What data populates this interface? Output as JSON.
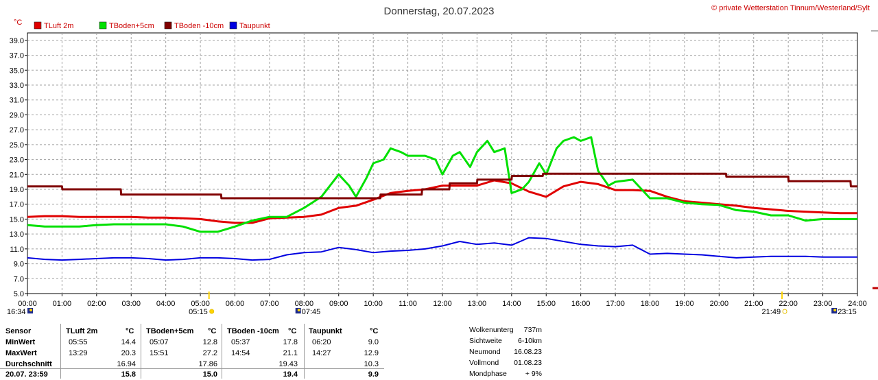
{
  "header": {
    "title": "Donnerstag, 20.07.2023",
    "copyright": "© private Wetterstation Tinnum/Westerland/Sylt",
    "unit": "°C"
  },
  "chart_data": {
    "type": "line",
    "title": "Donnerstag, 20.07.2023",
    "ylabel": "°C",
    "ylim": [
      5.0,
      40.0
    ],
    "xlim": [
      0,
      24
    ],
    "grid": true,
    "legend_position": "top-left",
    "y_ticks": [
      "5.0",
      "7.0",
      "9.0",
      "11.0",
      "13.0",
      "15.0",
      "17.0",
      "19.0",
      "21.0",
      "23.0",
      "25.0",
      "27.0",
      "29.0",
      "31.0",
      "33.0",
      "35.0",
      "37.0",
      "39.0"
    ],
    "x_ticks": [
      "00:00",
      "01:00",
      "02:00",
      "03:00",
      "04:00",
      "05:00",
      "06:00",
      "07:00",
      "08:00",
      "09:00",
      "10:00",
      "11:00",
      "12:00",
      "13:00",
      "14:00",
      "15:00",
      "16:00",
      "17:00",
      "18:00",
      "19:00",
      "20:00",
      "21:00",
      "22:00",
      "23:00",
      "24:00"
    ],
    "sun_moon_times": [
      {
        "time": "16:34",
        "hour": 0.0,
        "kind": "moonset"
      },
      {
        "time": "05:15",
        "hour": 5.25,
        "kind": "sunrise"
      },
      {
        "time": "07:45",
        "hour": 7.75,
        "kind": "moonrise"
      },
      {
        "time": "21:49",
        "hour": 21.82,
        "kind": "sunset"
      },
      {
        "time": "23:15",
        "hour": 23.25,
        "kind": "moonset"
      }
    ],
    "series": [
      {
        "name": "TLuft 2m",
        "color": "#e00000",
        "x": [
          0,
          0.5,
          1,
          1.5,
          2,
          2.5,
          3,
          3.5,
          4,
          4.5,
          5,
          5.5,
          6,
          6.5,
          7,
          7.5,
          8,
          8.5,
          9,
          9.5,
          10,
          10.5,
          11,
          11.5,
          12,
          12.5,
          13,
          13.5,
          14,
          14.5,
          15,
          15.5,
          16,
          16.5,
          17,
          17.5,
          18,
          18.5,
          19,
          19.5,
          20,
          20.5,
          21,
          21.5,
          22,
          22.5,
          23,
          23.5,
          24
        ],
        "y": [
          15.3,
          15.4,
          15.4,
          15.3,
          15.3,
          15.3,
          15.3,
          15.2,
          15.2,
          15.1,
          15.0,
          14.7,
          14.5,
          14.5,
          15.1,
          15.2,
          15.3,
          15.6,
          16.5,
          16.8,
          17.6,
          18.5,
          18.8,
          19.0,
          19.5,
          19.5,
          19.5,
          20.2,
          19.8,
          18.7,
          18.0,
          19.4,
          20.0,
          19.7,
          18.9,
          18.9,
          18.8,
          18.0,
          17.4,
          17.2,
          17.0,
          16.8,
          16.5,
          16.3,
          16.1,
          16.0,
          15.9,
          15.8,
          15.8
        ]
      },
      {
        "name": "TBoden+5cm",
        "color": "#00e000",
        "x": [
          0,
          0.5,
          1,
          1.5,
          2,
          2.5,
          3,
          3.5,
          4,
          4.5,
          5,
          5.5,
          6,
          6.5,
          7,
          7.5,
          8,
          8.5,
          8.8,
          9,
          9.3,
          9.5,
          9.8,
          10,
          10.3,
          10.5,
          10.8,
          11,
          11.5,
          11.8,
          12,
          12.3,
          12.5,
          12.8,
          13,
          13.3,
          13.5,
          13.8,
          14,
          14.3,
          14.5,
          14.8,
          15,
          15.3,
          15.5,
          15.8,
          16,
          16.3,
          16.5,
          16.8,
          17,
          17.5,
          18,
          18.5,
          19,
          19.5,
          20,
          20.5,
          21,
          21.5,
          22,
          22.5,
          23,
          23.5,
          24
        ],
        "y": [
          14.2,
          14.0,
          14.0,
          14.0,
          14.2,
          14.3,
          14.3,
          14.3,
          14.3,
          14.0,
          13.3,
          13.3,
          14.0,
          14.8,
          15.3,
          15.3,
          16.5,
          18.0,
          19.8,
          21.0,
          19.5,
          18.0,
          20.5,
          22.5,
          23.0,
          24.5,
          24.0,
          23.5,
          23.5,
          23.0,
          21.0,
          23.5,
          24.0,
          22.0,
          24.0,
          25.5,
          24.0,
          24.5,
          18.5,
          19.0,
          20.0,
          22.5,
          21.0,
          24.5,
          25.5,
          26.0,
          25.5,
          26.0,
          21.5,
          19.5,
          20.0,
          20.3,
          17.8,
          17.8,
          17.2,
          17.0,
          16.9,
          16.2,
          16.0,
          15.5,
          15.5,
          14.8,
          15.0,
          15.0,
          15.0
        ]
      },
      {
        "name": "TBoden -10cm",
        "color": "#800000",
        "x": [
          0,
          1,
          1.01,
          2.7,
          2.71,
          5.6,
          5.61,
          10.2,
          10.21,
          11.4,
          11.41,
          12.2,
          12.21,
          13.0,
          13.01,
          14.0,
          14.01,
          14.9,
          14.91,
          20.2,
          20.21,
          22.0,
          22.01,
          23.8,
          23.81,
          24
        ],
        "y": [
          19.4,
          19.4,
          19.0,
          19.0,
          18.3,
          18.3,
          17.8,
          17.8,
          18.3,
          18.3,
          19.0,
          19.0,
          19.8,
          19.8,
          20.3,
          20.3,
          20.8,
          20.8,
          21.1,
          21.1,
          20.7,
          20.7,
          20.1,
          20.1,
          19.4,
          19.4
        ]
      },
      {
        "name": "Taupunkt",
        "color": "#0000e0",
        "x": [
          0,
          0.5,
          1,
          1.5,
          2,
          2.5,
          3,
          3.5,
          4,
          4.5,
          5,
          5.5,
          6,
          6.5,
          7,
          7.5,
          8,
          8.5,
          9,
          9.5,
          10,
          10.5,
          11,
          11.5,
          12,
          12.5,
          13,
          13.5,
          14,
          14.5,
          15,
          15.5,
          16,
          16.5,
          17,
          17.5,
          18,
          18.5,
          19,
          19.5,
          20,
          20.5,
          21,
          21.5,
          22,
          22.5,
          23,
          23.5,
          24
        ],
        "y": [
          9.8,
          9.6,
          9.5,
          9.6,
          9.7,
          9.8,
          9.8,
          9.7,
          9.5,
          9.6,
          9.8,
          9.8,
          9.7,
          9.5,
          9.6,
          10.2,
          10.5,
          10.6,
          11.2,
          10.9,
          10.5,
          10.7,
          10.8,
          11.0,
          11.4,
          12.0,
          11.6,
          11.8,
          11.5,
          12.5,
          12.4,
          12.0,
          11.6,
          11.4,
          11.3,
          11.5,
          10.3,
          10.4,
          10.3,
          10.2,
          10.0,
          9.8,
          9.9,
          10.0,
          10.0,
          10.0,
          9.9,
          9.9,
          9.9
        ]
      }
    ]
  },
  "table": {
    "col_headers": {
      "sensor": "Sensor",
      "tluft": "TLuft 2m",
      "tboden5": "TBoden+5cm",
      "tboden10": "TBoden -10cm",
      "taupunkt": "Taupunkt",
      "unit": "°C"
    },
    "rows": [
      {
        "label": "MinWert",
        "tluft_t": "05:55",
        "tluft_v": "14.4",
        "tb5_t": "05:07",
        "tb5_v": "12.8",
        "tb10_t": "05:37",
        "tb10_v": "17.8",
        "tp_t": "06:20",
        "tp_v": "9.0"
      },
      {
        "label": "MaxWert",
        "tluft_t": "13:29",
        "tluft_v": "20.3",
        "tb5_t": "15:51",
        "tb5_v": "27.2",
        "tb10_t": "14:54",
        "tb10_v": "21.1",
        "tp_t": "14:27",
        "tp_v": "12.9"
      },
      {
        "label": "Durchschnitt",
        "tluft_t": "",
        "tluft_v": "16.94",
        "tb5_t": "",
        "tb5_v": "17.86",
        "tb10_t": "",
        "tb10_v": "19.43",
        "tp_t": "",
        "tp_v": "10.3"
      },
      {
        "label": "20.07. 23:59",
        "tluft_t": "",
        "tluft_v": "15.8",
        "tb5_t": "",
        "tb5_v": "15.0",
        "tb10_t": "",
        "tb10_v": "19.4",
        "tp_t": "",
        "tp_v": "9.9"
      }
    ]
  },
  "info": [
    {
      "label": "Wolkenunterg",
      "value": "737m"
    },
    {
      "label": "Sichtweite",
      "value": "6-10km"
    },
    {
      "label": "Neumond",
      "value": "16.08.23"
    },
    {
      "label": "Vollmond",
      "value": "01.08.23"
    },
    {
      "label": "Mondphase",
      "value": "+ 9%"
    }
  ]
}
